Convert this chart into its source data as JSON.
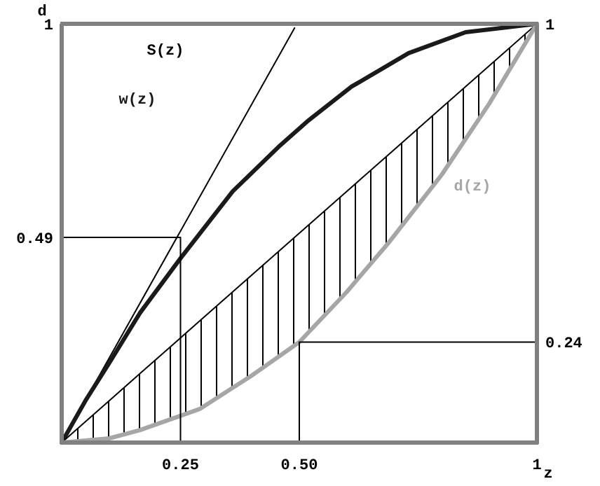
{
  "chart_data": {
    "type": "line",
    "xlabel": "z",
    "ylabel": "d",
    "xlim": [
      0,
      1
    ],
    "ylim": [
      0,
      1
    ],
    "y2lim": [
      0,
      1
    ],
    "xticks": [
      0.25,
      {
        "value": 0.5,
        "label": "0.50"
      },
      1
    ],
    "yticks": [
      0.49,
      1
    ],
    "y2ticks": [
      0.24,
      1
    ],
    "grid": false,
    "marker": "none",
    "series": [
      {
        "name": "S(z)",
        "color": "#000000",
        "x": [
          0,
          0.49
        ],
        "values": [
          0,
          0.99
        ]
      },
      {
        "name": "w(z)",
        "color": "#1a1a1a",
        "x": [
          0,
          0.05,
          0.1,
          0.165,
          0.25,
          0.36,
          0.46,
          0.52,
          0.61,
          0.73,
          0.85,
          1
        ],
        "values": [
          0,
          0.1,
          0.19,
          0.31,
          0.44,
          0.6,
          0.71,
          0.77,
          0.85,
          0.93,
          0.98,
          1
        ]
      },
      {
        "color": "#000000",
        "x": [
          0,
          0.1,
          0.165,
          0.29,
          0.4,
          0.5,
          0.6,
          0.69,
          0.8,
          0.9,
          1
        ],
        "values": [
          0,
          0.1,
          0.165,
          0.29,
          0.4,
          0.5,
          0.6,
          0.69,
          0.8,
          0.9,
          1
        ],
        "lower": [
          0,
          0.01,
          0.03,
          0.08,
          0.16,
          0.24,
          0.36,
          0.48,
          0.64,
          0.81,
          1
        ],
        "upper": [
          0,
          0.1,
          0.165,
          0.29,
          0.4,
          0.5,
          0.6,
          0.69,
          0.8,
          0.9,
          1
        ]
      },
      {
        "name": "d(z)",
        "color": "#a6a6a6",
        "x": [
          0,
          0.1,
          0.165,
          0.29,
          0.4,
          0.5,
          0.6,
          0.69,
          0.8,
          0.9,
          1
        ],
        "values": [
          0,
          0.01,
          0.03,
          0.08,
          0.16,
          0.24,
          0.36,
          0.48,
          0.64,
          0.81,
          1
        ]
      },
      {
        "color": "#000000",
        "x": [
          0,
          0.25,
          0.25
        ],
        "values": [
          0.49,
          0.49,
          0
        ]
      },
      {
        "color": "#000000",
        "x": [
          0.5,
          0.5,
          1
        ],
        "values": [
          0,
          0.24,
          0.24
        ]
      }
    ]
  }
}
